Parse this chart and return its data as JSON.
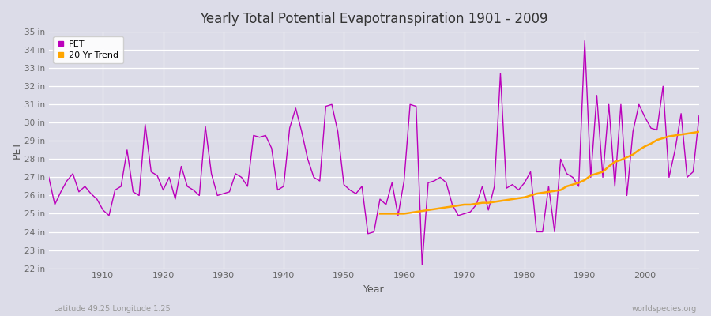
{
  "title": "Yearly Total Potential Evapotranspiration 1901 - 2009",
  "xlabel": "Year",
  "ylabel": "PET",
  "bottom_left": "Latitude 49.25 Longitude 1.25",
  "bottom_right": "worldspecies.org",
  "ylim": [
    22,
    35
  ],
  "pet_color": "#BB00BB",
  "trend_color": "#FFA500",
  "bg_color": "#DCDCE8",
  "grid_color": "#FFFFFF",
  "years": [
    1901,
    1902,
    1903,
    1904,
    1905,
    1906,
    1907,
    1908,
    1909,
    1910,
    1911,
    1912,
    1913,
    1914,
    1915,
    1916,
    1917,
    1918,
    1919,
    1920,
    1921,
    1922,
    1923,
    1924,
    1925,
    1926,
    1927,
    1928,
    1929,
    1930,
    1931,
    1932,
    1933,
    1934,
    1935,
    1936,
    1937,
    1938,
    1939,
    1940,
    1941,
    1942,
    1943,
    1944,
    1945,
    1946,
    1947,
    1948,
    1949,
    1950,
    1951,
    1952,
    1953,
    1954,
    1955,
    1956,
    1957,
    1958,
    1959,
    1960,
    1961,
    1962,
    1963,
    1964,
    1965,
    1966,
    1967,
    1968,
    1969,
    1970,
    1971,
    1972,
    1973,
    1974,
    1975,
    1976,
    1977,
    1978,
    1979,
    1980,
    1981,
    1982,
    1983,
    1984,
    1985,
    1986,
    1987,
    1988,
    1989,
    1990,
    1991,
    1992,
    1993,
    1994,
    1995,
    1996,
    1997,
    1998,
    1999,
    2000,
    2001,
    2002,
    2003,
    2004,
    2005,
    2006,
    2007,
    2008,
    2009
  ],
  "pet_values": [
    27.0,
    25.5,
    26.2,
    26.8,
    27.2,
    26.2,
    26.5,
    26.1,
    25.8,
    25.2,
    24.9,
    26.3,
    26.5,
    28.5,
    26.2,
    26.0,
    29.9,
    27.3,
    27.1,
    26.3,
    27.0,
    25.8,
    27.6,
    26.5,
    26.3,
    26.0,
    29.8,
    27.2,
    26.0,
    26.1,
    26.2,
    27.2,
    27.0,
    26.5,
    29.3,
    29.2,
    29.3,
    28.6,
    26.3,
    26.5,
    29.7,
    30.8,
    29.5,
    28.0,
    27.0,
    26.8,
    30.9,
    31.0,
    29.5,
    26.6,
    26.3,
    26.1,
    26.5,
    23.9,
    24.0,
    25.8,
    25.5,
    26.7,
    24.9,
    26.8,
    31.0,
    30.9,
    22.2,
    26.7,
    26.8,
    27.0,
    26.7,
    25.5,
    24.9,
    25.0,
    25.1,
    25.5,
    26.5,
    25.2,
    26.5,
    32.7,
    26.4,
    26.6,
    26.3,
    26.7,
    27.3,
    24.0,
    24.0,
    26.5,
    24.0,
    28.0,
    27.2,
    27.0,
    26.5,
    34.5,
    27.0,
    31.5,
    27.0,
    31.0,
    26.5,
    31.0,
    26.0,
    29.5,
    31.0,
    30.3,
    29.7,
    29.6,
    32.0,
    27.0,
    28.5,
    30.5,
    27.0,
    27.3,
    30.4
  ],
  "trend_years": [
    1956,
    1957,
    1958,
    1959,
    1960,
    1961,
    1962,
    1963,
    1964,
    1965,
    1966,
    1967,
    1968,
    1969,
    1970,
    1971,
    1972,
    1973,
    1974,
    1975,
    1976,
    1977,
    1978,
    1979,
    1980,
    1981,
    1982,
    1983,
    1984,
    1985,
    1986,
    1987,
    1988,
    1989,
    1990,
    1991,
    1992,
    1993,
    1994,
    1995,
    1996,
    1997,
    1998,
    1999,
    2000,
    2001,
    2002,
    2003,
    2004,
    2005,
    2006,
    2007,
    2008,
    2009
  ],
  "trend_values": [
    25.0,
    25.0,
    25.0,
    25.0,
    25.0,
    25.05,
    25.1,
    25.15,
    25.2,
    25.25,
    25.3,
    25.35,
    25.4,
    25.45,
    25.5,
    25.5,
    25.55,
    25.6,
    25.6,
    25.65,
    25.7,
    25.75,
    25.8,
    25.85,
    25.9,
    26.0,
    26.1,
    26.15,
    26.2,
    26.25,
    26.3,
    26.5,
    26.6,
    26.7,
    26.85,
    27.1,
    27.2,
    27.3,
    27.6,
    27.85,
    27.95,
    28.1,
    28.25,
    28.5,
    28.7,
    28.85,
    29.05,
    29.15,
    29.25,
    29.3,
    29.35,
    29.4,
    29.45,
    29.5
  ]
}
